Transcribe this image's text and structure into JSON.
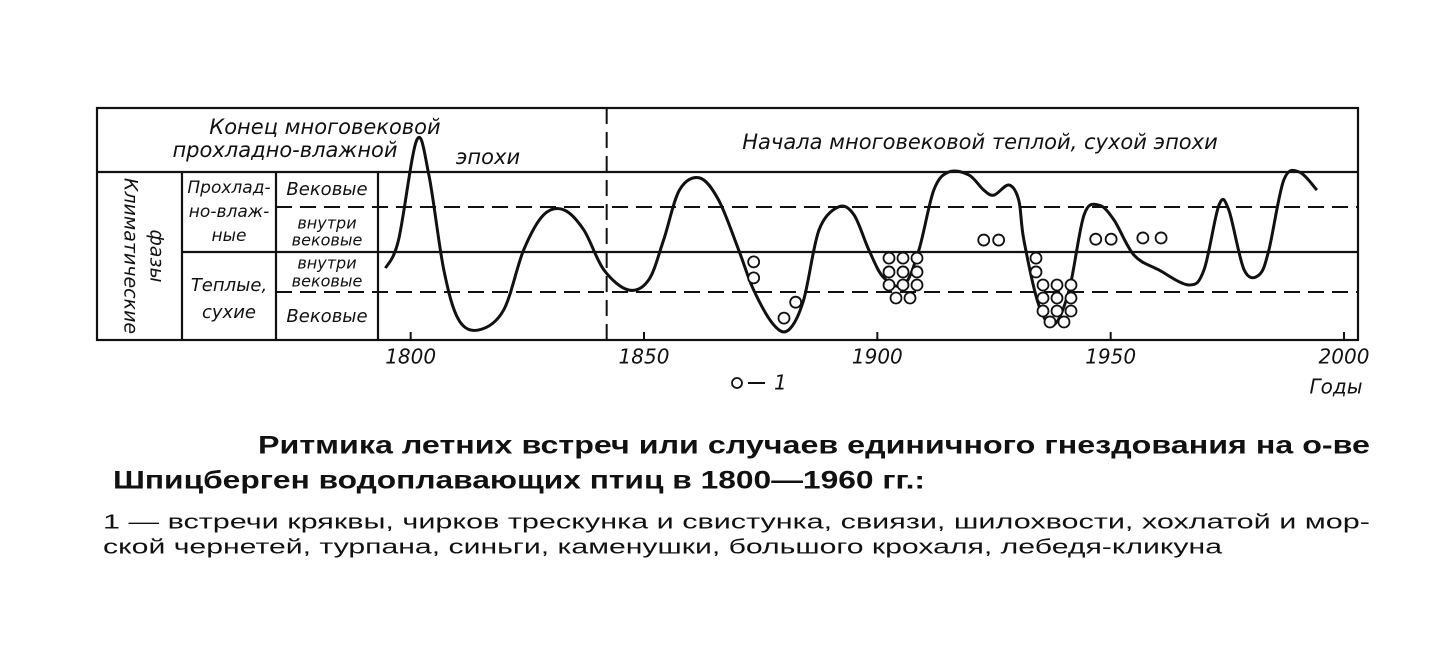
{
  "chart_data": {
    "type": "line",
    "header_left": [
      "Конец многовековой",
      "прохладно-влажной",
      "эпохи"
    ],
    "header_right": "Начала многовековой теплой, сухой эпохи",
    "row_axis_label": [
      "Климатические",
      "фазы"
    ],
    "phase_groups": [
      [
        "Прохлад-",
        "но-влаж-",
        "ные"
      ],
      [
        "Теплые,",
        "сухие"
      ]
    ],
    "phase_rows": [
      [
        "Вековые"
      ],
      [
        "внутри",
        "вековые"
      ],
      [
        "внутри",
        "вековые"
      ],
      [
        "Вековые"
      ]
    ],
    "x_label": "Годы",
    "xlim": [
      1793,
      2003
    ],
    "xticks": [
      1800,
      1850,
      1900,
      1950,
      2000
    ],
    "ylim": [
      0,
      4
    ],
    "epoch_boundary": 1842,
    "series": [
      {
        "color": "#111111",
        "x": [
          1794.6,
          1797.4,
          1801.3,
          1803.9,
          1807.1,
          1810.3,
          1814.6,
          1819.9,
          1824.2,
          1828.5,
          1832.8,
          1837.1,
          1841.4,
          1846.7,
          1851.0,
          1854.2,
          1857.6,
          1861.9,
          1866.0,
          1870.3,
          1873.5,
          1877.8,
          1881.0,
          1884.2,
          1887.5,
          1891.7,
          1895.0,
          1898.2,
          1901.4,
          1905.7,
          1908.9,
          1912.1,
          1915.3,
          1919.6,
          1922.8,
          1925.0,
          1928.2,
          1930.3,
          1931.4,
          1934.6,
          1937.8,
          1941.1,
          1944.3,
          1947.5,
          1950.7,
          1955.0,
          1960.3,
          1966.8,
          1970.0,
          1973.2,
          1975.3,
          1978.6,
          1981.8,
          1983.9,
          1987.1,
          1990.4,
          1994.2
        ],
        "values": [
          1.71,
          2.38,
          4.76,
          3.93,
          1.67,
          0.48,
          0.24,
          0.71,
          2.14,
          2.98,
          3.1,
          2.62,
          1.67,
          1.19,
          1.43,
          2.38,
          3.57,
          3.86,
          3.33,
          2.14,
          1.19,
          0.36,
          0.24,
          0.95,
          2.62,
          3.17,
          2.98,
          2.14,
          1.48,
          1.31,
          2.14,
          3.57,
          4.0,
          3.93,
          3.57,
          3.45,
          3.69,
          3.33,
          2.38,
          0.83,
          0.36,
          1.19,
          2.98,
          3.21,
          2.86,
          2.02,
          1.67,
          1.31,
          1.67,
          3.21,
          3.1,
          1.67,
          1.55,
          2.14,
          3.81,
          4.0,
          3.57
        ]
      },
      {
        "name": "1",
        "type": "scatter",
        "color": "#111111",
        "x": [
          1873.5,
          1873.5,
          1880.0,
          1882.5,
          1902.5,
          1905.5,
          1908.5,
          1902.5,
          1905.5,
          1908.5,
          1902.5,
          1905.5,
          1908.5,
          1904.0,
          1907.0,
          1922.8,
          1926.0,
          1934.0,
          1934.0,
          1935.5,
          1938.5,
          1941.5,
          1935.5,
          1938.5,
          1941.5,
          1935.5,
          1938.5,
          1941.5,
          1937.0,
          1940.0,
          1946.8,
          1950.1,
          1956.9,
          1960.8
        ],
        "values": [
          1.86,
          1.48,
          0.52,
          0.9,
          1.95,
          1.95,
          1.95,
          1.62,
          1.62,
          1.62,
          1.31,
          1.31,
          1.31,
          1.0,
          1.0,
          2.38,
          2.38,
          1.95,
          1.62,
          1.31,
          1.31,
          1.31,
          1.0,
          1.0,
          1.0,
          0.69,
          0.69,
          0.69,
          0.43,
          0.43,
          2.4,
          2.4,
          2.43,
          2.43
        ]
      }
    ],
    "caption": {
      "title": [
        "Ритмика летних встреч или случаев единичного гнездования на о-ве",
        "Шпицберген водоплавающих птиц в 1800—1960 гг.:"
      ],
      "note": [
        "1 — встречи кряквы, чирков трескунка и свистунка, свиязи, шилохвости, хохлатой и мор-",
        "ской чернетей, турпана, синьги, каменушки, большого крохаля, лебедя-кликуна"
      ]
    }
  }
}
